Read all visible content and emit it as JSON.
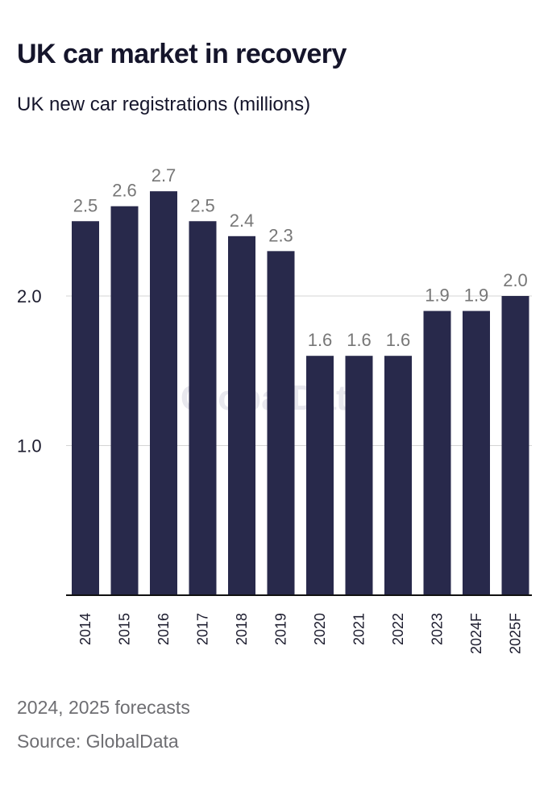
{
  "title": "UK car market in recovery",
  "subtitle": "UK new car registrations (millions)",
  "note": "2024, 2025 forecasts",
  "source": "Source: GlobalData",
  "watermark": "GlobalData",
  "colors": {
    "bar": "#28294b",
    "value_label": "#777777",
    "grid": "#d4d4d4",
    "axis": "#111111"
  },
  "chart_data": {
    "type": "bar",
    "categories": [
      "2014",
      "2015",
      "2016",
      "2017",
      "2018",
      "2019",
      "2020",
      "2021",
      "2022",
      "2023",
      "2024F",
      "2025F"
    ],
    "values": [
      2.5,
      2.6,
      2.7,
      2.5,
      2.4,
      2.3,
      1.6,
      1.6,
      1.6,
      1.9,
      1.9,
      2.0
    ],
    "value_labels": [
      "2.5",
      "2.6",
      "2.7",
      "2.5",
      "2.4",
      "2.3",
      "1.6",
      "1.6",
      "1.6",
      "1.9",
      "1.9",
      "2.0"
    ],
    "title": "UK car market in recovery",
    "ylabel": "",
    "xlabel": "",
    "ylim": [
      0,
      2.7
    ],
    "yticks": [
      1.0,
      2.0
    ],
    "ytick_labels": [
      "1.0",
      "2.0"
    ],
    "grid": true,
    "x_tick_rotation": "vertical"
  }
}
